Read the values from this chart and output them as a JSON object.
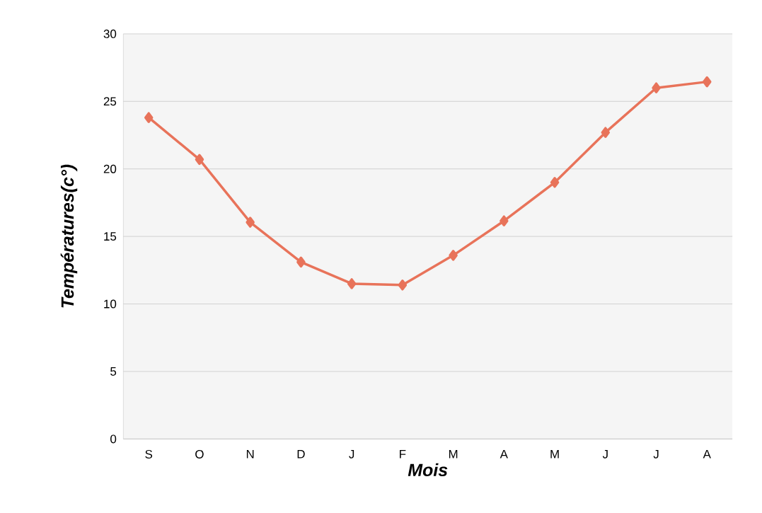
{
  "chart_data": {
    "type": "line",
    "xlabel": "Mois",
    "ylabel": "Températures(c°)",
    "categories": [
      "S",
      "O",
      "N",
      "D",
      "J",
      "F",
      "M",
      "A",
      "M",
      "J",
      "J",
      "A"
    ],
    "series": [
      {
        "color": "#e8735a",
        "values": [
          23.8,
          20.7,
          16.05,
          13.1,
          11.5,
          11.4,
          13.6,
          16.15,
          19.0,
          22.7,
          26.0,
          26.45
        ]
      }
    ],
    "ylim": [
      0,
      30
    ],
    "yticks": [
      0,
      5,
      10,
      15,
      20,
      25,
      30
    ],
    "grid": "y",
    "marker": "diamond",
    "line_style": "solid"
  }
}
